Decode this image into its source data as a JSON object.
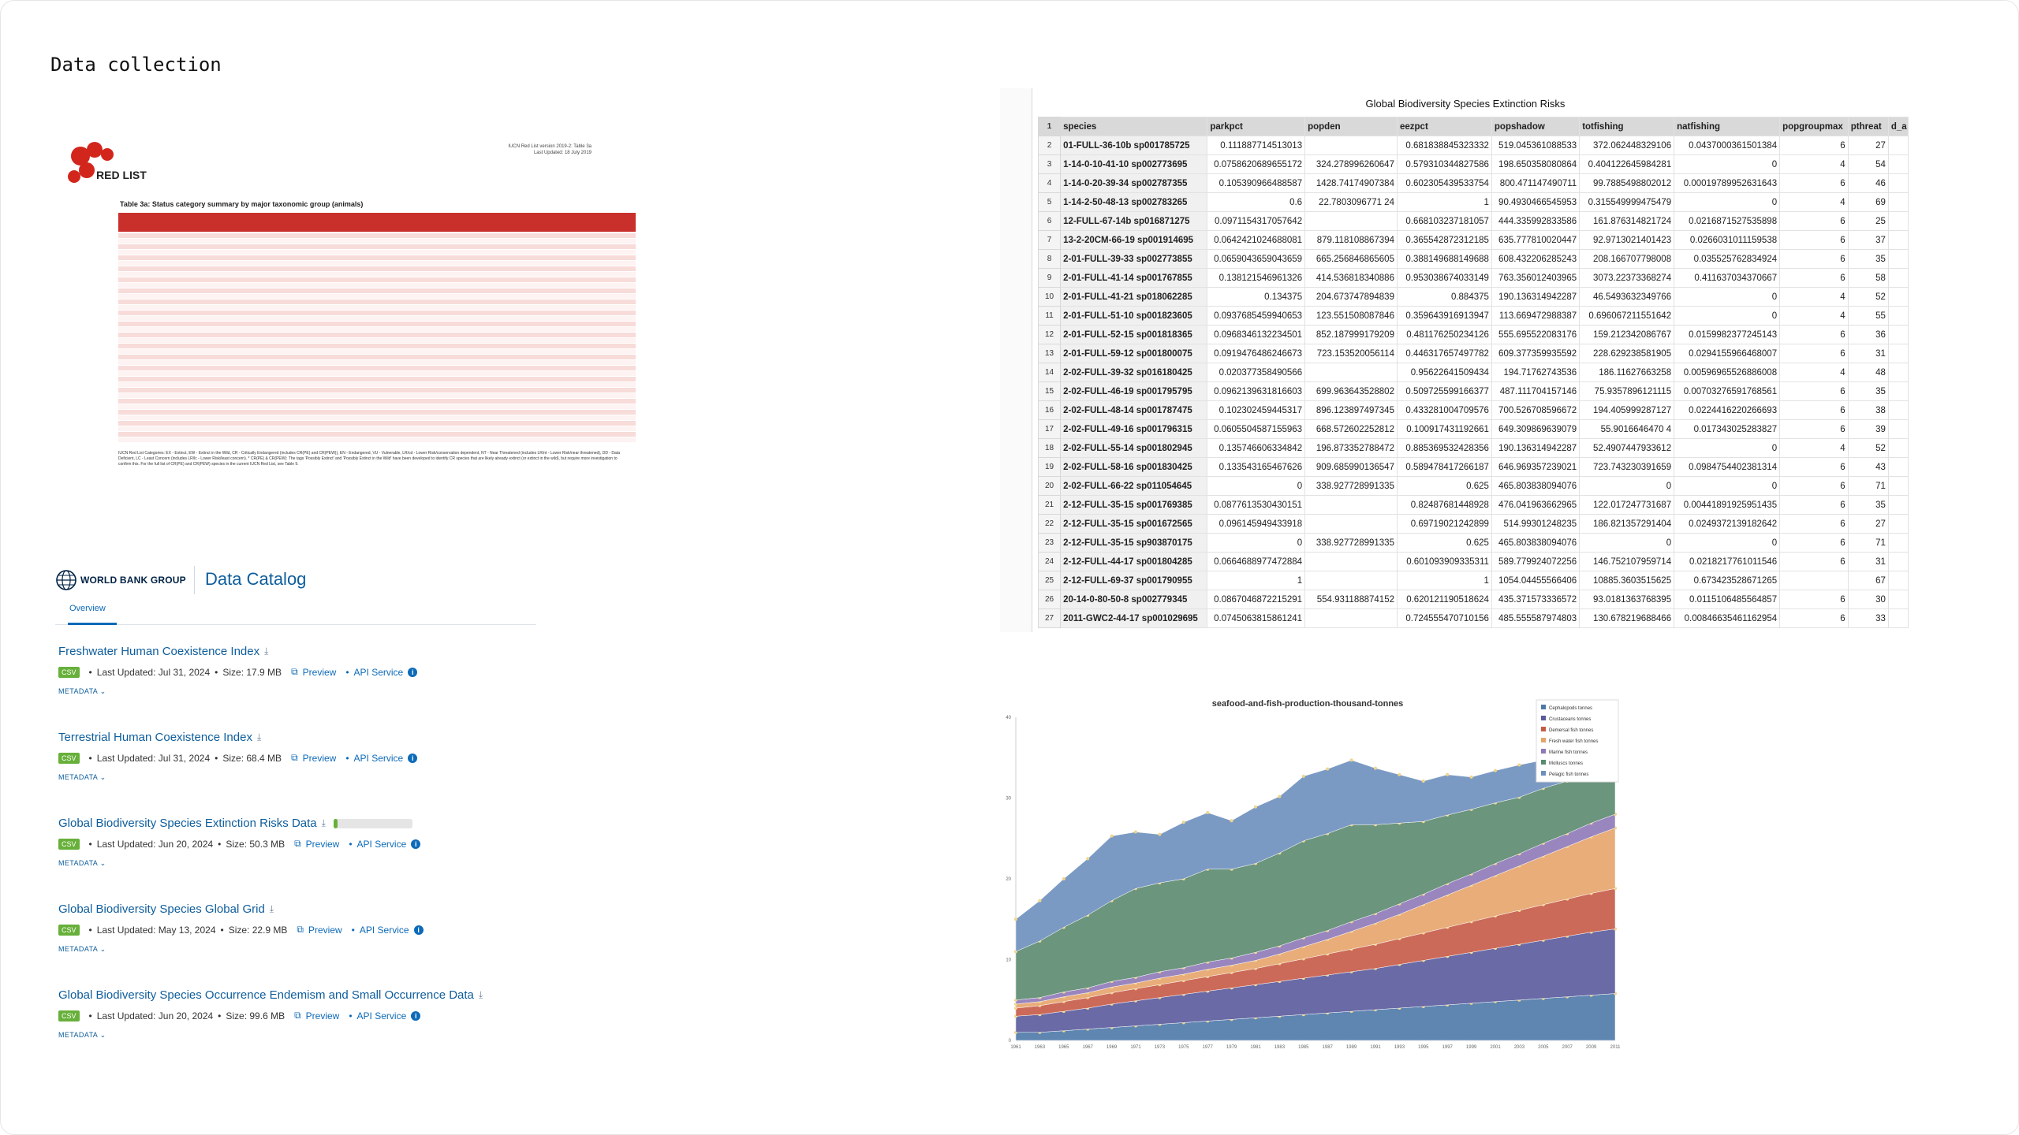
{
  "page": {
    "title": "Data collection"
  },
  "redlist": {
    "logo_text": "RED LIST",
    "version_line1": "IUCN Red List version 2019-2: Table 3a",
    "version_line2": "Last Updated: 18 July 2019",
    "table_title": "Table 3a: Status category summary by major taxonomic group (animals)",
    "notes": "IUCN Red List Categories: EX - Extinct, EW - Extinct in the Wild, CR - Critically Endangered (includes CR(PE) and CR(PEW)), EN - Endangered, VU - Vulnerable, LR/cd - Lower Risk/conservation dependent, NT - Near Threatened (includes LR/nt - Lower Risk/near threatened), DD - Data Deficient, LC - Least Concern (includes LR/lc - Lower Risk/least concern). * CR(PE) & CR(PEW): The tags 'Possibly Extinct' and 'Possibly Extinct in the Wild' have been developed to identify CR species that are likely already extinct (or extinct in the wild), but require more investigation to confirm this. For the full list of CR(PE) and CR(PEW) species in the current IUCN Red List, see Table 9."
  },
  "catalog": {
    "brand": "WORLD BANK GROUP",
    "title": "Data Catalog",
    "tab": "Overview",
    "datasets": [
      {
        "name": "Freshwater Human Coexistence Index",
        "format": "CSV",
        "updated": "Last Updated: Jul 31, 2024",
        "size": "Size: 17.9 MB",
        "preview": "Preview",
        "api": "API Service",
        "metadata": "METADATA ⌄"
      },
      {
        "name": "Terrestrial Human Coexistence Index",
        "format": "CSV",
        "updated": "Last Updated: Jul 31, 2024",
        "size": "Size: 68.4 MB",
        "preview": "Preview",
        "api": "API Service",
        "metadata": "METADATA ⌄"
      },
      {
        "name": "Global Biodiversity Species Extinction Risks Data",
        "format": "CSV",
        "updated": "Last Updated: Jun 20, 2024",
        "size": "Size: 50.3 MB",
        "preview": "Preview",
        "api": "API Service",
        "metadata": "METADATA ⌄",
        "download_progress": 0.05
      },
      {
        "name": "Global Biodiversity Species Global Grid",
        "format": "CSV",
        "updated": "Last Updated: May 13, 2024",
        "size": "Size: 22.9 MB",
        "preview": "Preview",
        "api": "API Service",
        "metadata": "METADATA ⌄"
      },
      {
        "name": "Global Biodiversity Species Occurrence Endemism and Small Occurrence Data",
        "format": "CSV",
        "updated": "Last Updated: Jun 20, 2024",
        "size": "Size: 99.6 MB",
        "preview": "Preview",
        "api": "API Service",
        "metadata": "METADATA ⌄"
      }
    ]
  },
  "sheet": {
    "title": "Global Biodiversity Species Extinction Risks",
    "headers": [
      "species",
      "parkpct",
      "popden",
      "eezpct",
      "popshadow",
      "totfishing",
      "natfishing",
      "popgroupmax",
      "pthreat",
      "d_a"
    ],
    "rows": [
      [
        "01-FULL-36-10b sp001785725",
        "0.111887714513013",
        "",
        "0.681838845323332",
        "519.045361088533",
        "372.062448329106",
        "0.0437000361501384",
        "6",
        "27",
        ""
      ],
      [
        "1-14-0-10-41-10 sp002773695",
        "0.0758620689655172",
        "324.278996260647",
        "0.579310344827586",
        "198.650358080864",
        "0.404122645984281",
        "0",
        "4",
        "54",
        ""
      ],
      [
        "1-14-0-20-39-34 sp002787355",
        "0.105390966488587",
        "1428.74174907384",
        "0.602305439533754",
        "800.471147490711",
        "99.7885498802012",
        "0.00019789952631643",
        "6",
        "46",
        ""
      ],
      [
        "1-14-2-50-48-13 sp002783265",
        "0.6",
        "22.7803096771 24",
        "1",
        "90.4930466545953",
        "0.315549999475479",
        "0",
        "4",
        "69",
        ""
      ],
      [
        "12-FULL-67-14b sp016871275",
        "0.0971154317057642",
        "",
        "0.668103237181057",
        "444.335992833586",
        "161.876314821724",
        "0.0216871527535898",
        "6",
        "25",
        ""
      ],
      [
        "13-2-20CM-66-19 sp001914695",
        "0.0642421024688081",
        "879.118108867394",
        "0.365542872312185",
        "635.777810020447",
        "92.9713021401423",
        "0.0266031011159538",
        "6",
        "37",
        ""
      ],
      [
        "2-01-FULL-39-33 sp002773855",
        "0.0659043659043659",
        "665.256846865605",
        "0.388149688149688",
        "608.432206285243",
        "208.166707798008",
        "0.035525762834924",
        "6",
        "35",
        ""
      ],
      [
        "2-01-FULL-41-14 sp001767855",
        "0.138121546961326",
        "414.536818340886",
        "0.953038674033149",
        "763.356012403965",
        "3073.22373368274",
        "0.411637034370667",
        "6",
        "58",
        ""
      ],
      [
        "2-01-FULL-41-21 sp018062285",
        "0.134375",
        "204.673747894839",
        "0.884375",
        "190.136314942287",
        "46.5493632349766",
        "0",
        "4",
        "52",
        ""
      ],
      [
        "2-01-FULL-51-10 sp001823605",
        "0.0937685459940653",
        "123.551508087846",
        "0.359643916913947",
        "113.669472988387",
        "0.696067211551642",
        "0",
        "4",
        "55",
        ""
      ],
      [
        "2-01-FULL-52-15 sp001818365",
        "0.0968346132234501",
        "852.187999179209",
        "0.481176250234126",
        "555.695522083176",
        "159.212342086767",
        "0.0159982377245143",
        "6",
        "36",
        ""
      ],
      [
        "2-01-FULL-59-12 sp001800075",
        "0.0919476486246673",
        "723.153520056114",
        "0.446317657497782",
        "609.377359935592",
        "228.629238581905",
        "0.0294155966468007",
        "6",
        "31",
        ""
      ],
      [
        "2-02-FULL-39-32 sp016180425",
        "0.020377358490566",
        "",
        "0.95622641509434",
        "194.71762743536",
        "186.11627663258",
        "0.00596965526886008",
        "4",
        "48",
        ""
      ],
      [
        "2-02-FULL-46-19 sp001795795",
        "0.0962139631816603",
        "699.963643528802",
        "0.509725599166377",
        "487.111704157146",
        "75.9357896121115",
        "0.00703276591768561",
        "6",
        "35",
        ""
      ],
      [
        "2-02-FULL-48-14 sp001787475",
        "0.102302459445317",
        "896.123897497345",
        "0.433281004709576",
        "700.526708596672",
        "194.405999287127",
        "0.0224416220266693",
        "6",
        "38",
        ""
      ],
      [
        "2-02-FULL-49-16 sp001796315",
        "0.0605504587155963",
        "668.572602252812",
        "0.100917431192661",
        "649.309869639079",
        "55.9016646470 4",
        "0.017343025283827",
        "6",
        "39",
        ""
      ],
      [
        "2-02-FULL-55-14 sp001802945",
        "0.135746606334842",
        "196.873352788472",
        "0.885369532428356",
        "190.136314942287",
        "52.4907447933612",
        "0",
        "4",
        "52",
        ""
      ],
      [
        "2-02-FULL-58-16 sp001830425",
        "0.133543165467626",
        "909.685990136547",
        "0.589478417266187",
        "646.969357239021",
        "723.743230391659",
        "0.0984754402381314",
        "6",
        "43",
        ""
      ],
      [
        "2-02-FULL-66-22 sp011054645",
        "0",
        "338.927728991335",
        "0.625",
        "465.803838094076",
        "0",
        "0",
        "6",
        "71",
        ""
      ],
      [
        "2-12-FULL-35-15 sp001769385",
        "0.0877613530430151",
        "",
        "0.82487681448928",
        "476.041963662965",
        "122.017247731687",
        "0.00441891925951435",
        "6",
        "35",
        ""
      ],
      [
        "2-12-FULL-35-15 sp001672565",
        "0.096145949433918",
        "",
        "0.69719021242899",
        "514.99301248235",
        "186.821357291404",
        "0.0249372139182642",
        "6",
        "27",
        ""
      ],
      [
        "2-12-FULL-35-15 sp903870175",
        "0",
        "338.927728991335",
        "0.625",
        "465.803838094076",
        "0",
        "0",
        "6",
        "71",
        ""
      ],
      [
        "2-12-FULL-44-17 sp001804285",
        "0.0664688977472884",
        "",
        "0.601093909335311",
        "589.779924072256",
        "146.752107959714",
        "0.0218217761011546",
        "6",
        "31",
        ""
      ],
      [
        "2-12-FULL-69-37 sp001790955",
        "1",
        "",
        "1",
        "1054.04455566406",
        "10885.3603515625",
        "0.673423528671265",
        "",
        "67",
        ""
      ],
      [
        "20-14-0-80-50-8 sp002779345",
        "0.0867046872215291",
        "554.931188874152",
        "0.620121190518624",
        "435.371573336572",
        "93.0181363768395",
        "0.0115106485564857",
        "6",
        "30",
        ""
      ],
      [
        "2011-GWC2-44-17 sp001029695",
        "0.0745063815861241",
        "",
        "0.724555470710156",
        "485.555587974803",
        "130.678219688466",
        "0.00846635461162954",
        "6",
        "33",
        ""
      ]
    ]
  },
  "chart_data": {
    "type": "area",
    "title": "seafood-and-fish-production-thousand-tonnes",
    "x": [
      1961,
      1963,
      1965,
      1967,
      1969,
      1971,
      1973,
      1975,
      1977,
      1979,
      1981,
      1983,
      1985,
      1987,
      1989,
      1991,
      1993,
      1995,
      1997,
      1999,
      2001,
      2003,
      2005,
      2007,
      2009,
      2011
    ],
    "ylim": [
      0,
      40
    ],
    "series": [
      {
        "name": "Cephalopods tonnes",
        "color": "#4d79a8",
        "values": [
          1,
          1,
          1.2,
          1.4,
          1.6,
          1.8,
          2,
          2.2,
          2.4,
          2.6,
          2.8,
          3,
          3.2,
          3.4,
          3.6,
          3.8,
          4,
          4.2,
          4.4,
          4.6,
          4.8,
          5,
          5.2,
          5.4,
          5.6,
          5.8
        ]
      },
      {
        "name": "Crustaceans tonnes",
        "color": "#5a5a9c",
        "values": [
          2,
          2.2,
          2.4,
          2.6,
          2.9,
          3.1,
          3.3,
          3.5,
          3.7,
          3.9,
          4.1,
          4.3,
          4.5,
          4.7,
          4.9,
          5.1,
          5.4,
          5.7,
          6,
          6.3,
          6.6,
          6.9,
          7.2,
          7.5,
          7.8,
          8
        ]
      },
      {
        "name": "Demersal fish tonnes",
        "color": "#c65a47",
        "values": [
          1,
          1.1,
          1.2,
          1.3,
          1.4,
          1.5,
          1.6,
          1.7,
          1.8,
          1.9,
          2,
          2.2,
          2.4,
          2.6,
          2.8,
          3,
          3.2,
          3.4,
          3.6,
          3.8,
          4,
          4.2,
          4.4,
          4.6,
          4.8,
          5
        ]
      },
      {
        "name": "Fresh water fish tonnes",
        "color": "#e6a46a",
        "values": [
          0.5,
          0.5,
          0.6,
          0.6,
          0.7,
          0.7,
          0.8,
          0.8,
          0.9,
          0.9,
          1,
          1.2,
          1.5,
          1.8,
          2.2,
          2.6,
          3,
          3.5,
          4,
          4.5,
          5,
          5.5,
          6,
          6.5,
          7,
          7.5
        ]
      },
      {
        "name": "Marine fish tonnes",
        "color": "#8f79b8",
        "values": [
          0.5,
          0.5,
          0.6,
          0.6,
          0.7,
          0.7,
          0.8,
          0.8,
          0.9,
          0.9,
          1,
          1,
          1.1,
          1.1,
          1.2,
          1.2,
          1.3,
          1.3,
          1.4,
          1.4,
          1.5,
          1.5,
          1.6,
          1.6,
          1.7,
          1.7
        ]
      },
      {
        "name": "Molluscs tonnes",
        "color": "#5b8a6f",
        "values": [
          6,
          7,
          8,
          9,
          10,
          11,
          11,
          11,
          11.5,
          11,
          11,
          11.5,
          12,
          12,
          12,
          11,
          10,
          9,
          8.5,
          8,
          7.5,
          7,
          6.8,
          6.5,
          6.3,
          6
        ]
      },
      {
        "name": "Pelagic fish tonnes",
        "color": "#6d8fbd",
        "values": [
          4,
          5,
          6,
          7,
          8,
          7,
          6,
          7,
          7,
          6,
          7,
          7,
          8,
          8,
          8,
          7,
          6,
          5,
          5,
          4,
          4,
          4,
          3.5,
          3,
          2.5,
          2.5
        ]
      }
    ]
  }
}
